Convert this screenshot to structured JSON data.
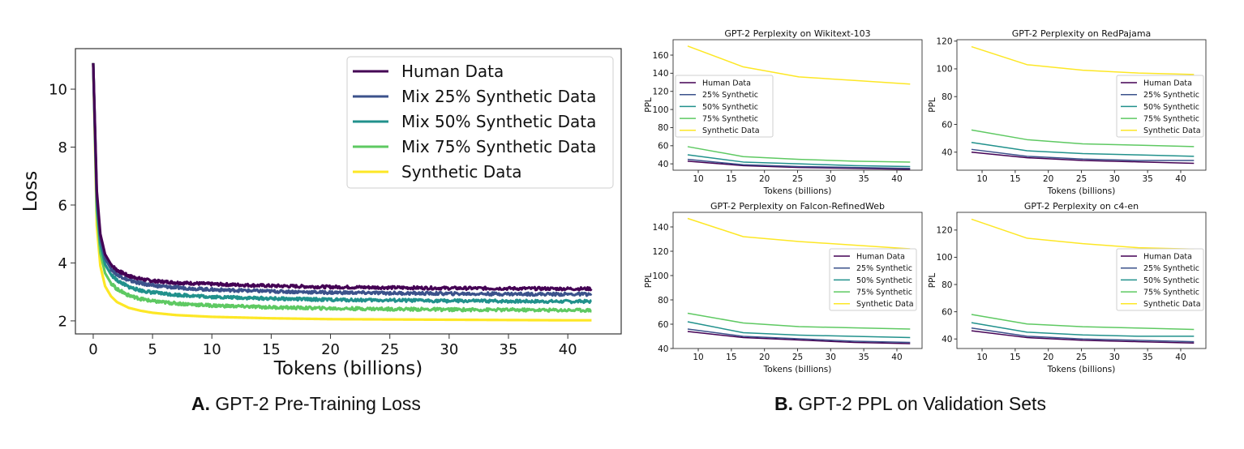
{
  "colors": {
    "human": "#440154",
    "syn25": "#3b528b",
    "syn50": "#21918c",
    "syn75": "#5ec962",
    "synthetic": "#fde725"
  },
  "captions": {
    "a_label": "A.",
    "a_text": "GPT-2 Pre-Training Loss",
    "b_label": "B.",
    "b_text": "GPT-2 PPL on Validation Sets"
  },
  "chart_data": [
    {
      "id": "loss",
      "type": "line",
      "title": "",
      "xlabel": "Tokens (billions)",
      "ylabel": "Loss",
      "xlim": [
        -1.5,
        44.5
      ],
      "ylim": [
        1.55,
        11.4
      ],
      "xticks": [
        0,
        5,
        10,
        15,
        20,
        25,
        30,
        35,
        40
      ],
      "yticks": [
        2,
        4,
        6,
        8,
        10
      ],
      "grid": false,
      "legend": "top-right",
      "series": [
        {
          "name": "Human Data",
          "color_key": "human",
          "x": [
            0,
            0.3,
            0.6,
            1,
            1.5,
            2,
            3,
            4,
            5,
            7,
            10,
            15,
            20,
            25,
            30,
            35,
            40,
            42
          ],
          "y": [
            10.9,
            6.5,
            5.0,
            4.3,
            3.95,
            3.75,
            3.55,
            3.45,
            3.38,
            3.32,
            3.27,
            3.21,
            3.17,
            3.15,
            3.13,
            3.12,
            3.11,
            3.11
          ]
        },
        {
          "name": "Mix 25% Synthetic Data",
          "color_key": "syn25",
          "x": [
            0,
            0.3,
            0.6,
            1,
            1.5,
            2,
            3,
            4,
            5,
            7,
            10,
            15,
            20,
            25,
            30,
            35,
            40,
            42
          ],
          "y": [
            10.9,
            6.3,
            4.85,
            4.15,
            3.8,
            3.6,
            3.4,
            3.3,
            3.22,
            3.15,
            3.08,
            3.02,
            2.98,
            2.96,
            2.94,
            2.93,
            2.92,
            2.92
          ]
        },
        {
          "name": "Mix 50% Synthetic Data",
          "color_key": "syn50",
          "x": [
            0,
            0.3,
            0.6,
            1,
            1.5,
            2,
            3,
            4,
            5,
            7,
            10,
            15,
            20,
            25,
            30,
            35,
            40,
            42
          ],
          "y": [
            10.9,
            6.1,
            4.65,
            3.95,
            3.6,
            3.4,
            3.17,
            3.05,
            2.98,
            2.9,
            2.83,
            2.77,
            2.73,
            2.71,
            2.69,
            2.68,
            2.67,
            2.67
          ]
        },
        {
          "name": "Mix 75% Synthetic Data",
          "color_key": "syn75",
          "x": [
            0,
            0.3,
            0.6,
            1,
            1.5,
            2,
            3,
            4,
            5,
            7,
            10,
            15,
            20,
            25,
            30,
            35,
            40,
            42
          ],
          "y": [
            10.9,
            5.8,
            4.35,
            3.65,
            3.3,
            3.1,
            2.88,
            2.76,
            2.68,
            2.6,
            2.53,
            2.47,
            2.43,
            2.41,
            2.39,
            2.38,
            2.37,
            2.37
          ]
        },
        {
          "name": "Synthetic Data",
          "color_key": "synthetic",
          "x": [
            0,
            0.3,
            0.6,
            1,
            1.5,
            2,
            3,
            4,
            5,
            7,
            10,
            15,
            20,
            25,
            30,
            35,
            40,
            42
          ],
          "y": [
            10.9,
            5.3,
            3.9,
            3.2,
            2.85,
            2.65,
            2.45,
            2.35,
            2.28,
            2.2,
            2.14,
            2.09,
            2.06,
            2.05,
            2.04,
            2.03,
            2.02,
            2.02
          ]
        }
      ]
    },
    {
      "id": "wikitext",
      "type": "line",
      "title": "GPT-2 Perplexity on Wikitext-103",
      "xlabel": "Tokens (billions)",
      "ylabel": "PPL",
      "xlim": [
        6.2,
        43.8
      ],
      "ylim": [
        33,
        177
      ],
      "xticks": [
        10,
        15,
        20,
        25,
        30,
        35,
        40
      ],
      "yticks": [
        40,
        60,
        80,
        100,
        120,
        140,
        160
      ],
      "legend": "center-left",
      "series": [
        {
          "name": "Human Data",
          "color_key": "human",
          "x": [
            8.4,
            16.8,
            25.2,
            33.6,
            42
          ],
          "y": [
            43,
            38,
            36,
            35,
            34
          ]
        },
        {
          "name": "25% Synthetic",
          "color_key": "syn25",
          "x": [
            8.4,
            16.8,
            25.2,
            33.6,
            42
          ],
          "y": [
            45,
            39,
            37,
            36,
            35
          ]
        },
        {
          "name": "50% Synthetic",
          "color_key": "syn50",
          "x": [
            8.4,
            16.8,
            25.2,
            33.6,
            42
          ],
          "y": [
            50,
            42,
            40,
            38,
            37
          ]
        },
        {
          "name": "75% Synthetic",
          "color_key": "syn75",
          "x": [
            8.4,
            16.8,
            25.2,
            33.6,
            42
          ],
          "y": [
            59,
            48,
            45,
            43,
            42
          ]
        },
        {
          "name": "Synthetic Data",
          "color_key": "synthetic",
          "x": [
            8.4,
            16.8,
            25.2,
            33.6,
            42
          ],
          "y": [
            170,
            147,
            136,
            132,
            128
          ]
        }
      ]
    },
    {
      "id": "redpajama",
      "type": "line",
      "title": "GPT-2 Perplexity on RedPajama",
      "xlabel": "Tokens (billions)",
      "ylabel": "PPL",
      "xlim": [
        6.2,
        43.8
      ],
      "ylim": [
        27,
        121
      ],
      "xticks": [
        10,
        15,
        20,
        25,
        30,
        35,
        40
      ],
      "yticks": [
        40,
        60,
        80,
        100,
        120
      ],
      "legend": "center-right",
      "series": [
        {
          "name": "Human Data",
          "color_key": "human",
          "x": [
            8.4,
            16.8,
            25.2,
            33.6,
            42
          ],
          "y": [
            40,
            36,
            34,
            33,
            32
          ]
        },
        {
          "name": "25% Synthetic",
          "color_key": "syn25",
          "x": [
            8.4,
            16.8,
            25.2,
            33.6,
            42
          ],
          "y": [
            42,
            37,
            35,
            34,
            34
          ]
        },
        {
          "name": "50% Synthetic",
          "color_key": "syn50",
          "x": [
            8.4,
            16.8,
            25.2,
            33.6,
            42
          ],
          "y": [
            47,
            41,
            39,
            38,
            37
          ]
        },
        {
          "name": "75% Synthetic",
          "color_key": "syn75",
          "x": [
            8.4,
            16.8,
            25.2,
            33.6,
            42
          ],
          "y": [
            56,
            49,
            46,
            45,
            44
          ]
        },
        {
          "name": "Synthetic Data",
          "color_key": "synthetic",
          "x": [
            8.4,
            16.8,
            25.2,
            33.6,
            42
          ],
          "y": [
            116,
            103,
            99,
            97,
            96
          ]
        }
      ]
    },
    {
      "id": "falcon",
      "type": "line",
      "title": "GPT-2 Perplexity on Falcon-RefinedWeb",
      "xlabel": "Tokens (billions)",
      "ylabel": "PPL",
      "xlim": [
        6.2,
        43.8
      ],
      "ylim": [
        40,
        152
      ],
      "xticks": [
        10,
        15,
        20,
        25,
        30,
        35,
        40
      ],
      "yticks": [
        40,
        60,
        80,
        100,
        120,
        140
      ],
      "legend": "center-right",
      "series": [
        {
          "name": "Human Data",
          "color_key": "human",
          "x": [
            8.4,
            16.8,
            25.2,
            33.6,
            42
          ],
          "y": [
            54,
            49,
            47,
            45,
            44
          ]
        },
        {
          "name": "25% Synthetic",
          "color_key": "syn25",
          "x": [
            8.4,
            16.8,
            25.2,
            33.6,
            42
          ],
          "y": [
            56,
            50,
            48,
            46,
            45
          ]
        },
        {
          "name": "50% Synthetic",
          "color_key": "syn50",
          "x": [
            8.4,
            16.8,
            25.2,
            33.6,
            42
          ],
          "y": [
            62,
            53,
            51,
            50,
            49
          ]
        },
        {
          "name": "75% Synthetic",
          "color_key": "syn75",
          "x": [
            8.4,
            16.8,
            25.2,
            33.6,
            42
          ],
          "y": [
            69,
            61,
            58,
            57,
            56
          ]
        },
        {
          "name": "Synthetic Data",
          "color_key": "synthetic",
          "x": [
            8.4,
            16.8,
            25.2,
            33.6,
            42
          ],
          "y": [
            147,
            132,
            128,
            125,
            122
          ]
        }
      ]
    },
    {
      "id": "c4",
      "type": "line",
      "title": "GPT-2 Perplexity on c4-en",
      "xlabel": "Tokens (billions)",
      "ylabel": "PPL",
      "xlim": [
        6.2,
        43.8
      ],
      "ylim": [
        33,
        133
      ],
      "xticks": [
        10,
        15,
        20,
        25,
        30,
        35,
        40
      ],
      "yticks": [
        40,
        60,
        80,
        100,
        120
      ],
      "legend": "center-right",
      "series": [
        {
          "name": "Human Data",
          "color_key": "human",
          "x": [
            8.4,
            16.8,
            25.2,
            33.6,
            42
          ],
          "y": [
            46,
            41,
            39,
            38,
            37
          ]
        },
        {
          "name": "25% Synthetic",
          "color_key": "syn25",
          "x": [
            8.4,
            16.8,
            25.2,
            33.6,
            42
          ],
          "y": [
            48,
            42,
            40,
            39,
            38
          ]
        },
        {
          "name": "50% Synthetic",
          "color_key": "syn50",
          "x": [
            8.4,
            16.8,
            25.2,
            33.6,
            42
          ],
          "y": [
            52,
            45,
            43,
            42,
            42
          ]
        },
        {
          "name": "75% Synthetic",
          "color_key": "syn75",
          "x": [
            8.4,
            16.8,
            25.2,
            33.6,
            42
          ],
          "y": [
            58,
            51,
            49,
            48,
            47
          ]
        },
        {
          "name": "Synthetic Data",
          "color_key": "synthetic",
          "x": [
            8.4,
            16.8,
            25.2,
            33.6,
            42
          ],
          "y": [
            128,
            114,
            110,
            107,
            106
          ]
        }
      ]
    }
  ]
}
